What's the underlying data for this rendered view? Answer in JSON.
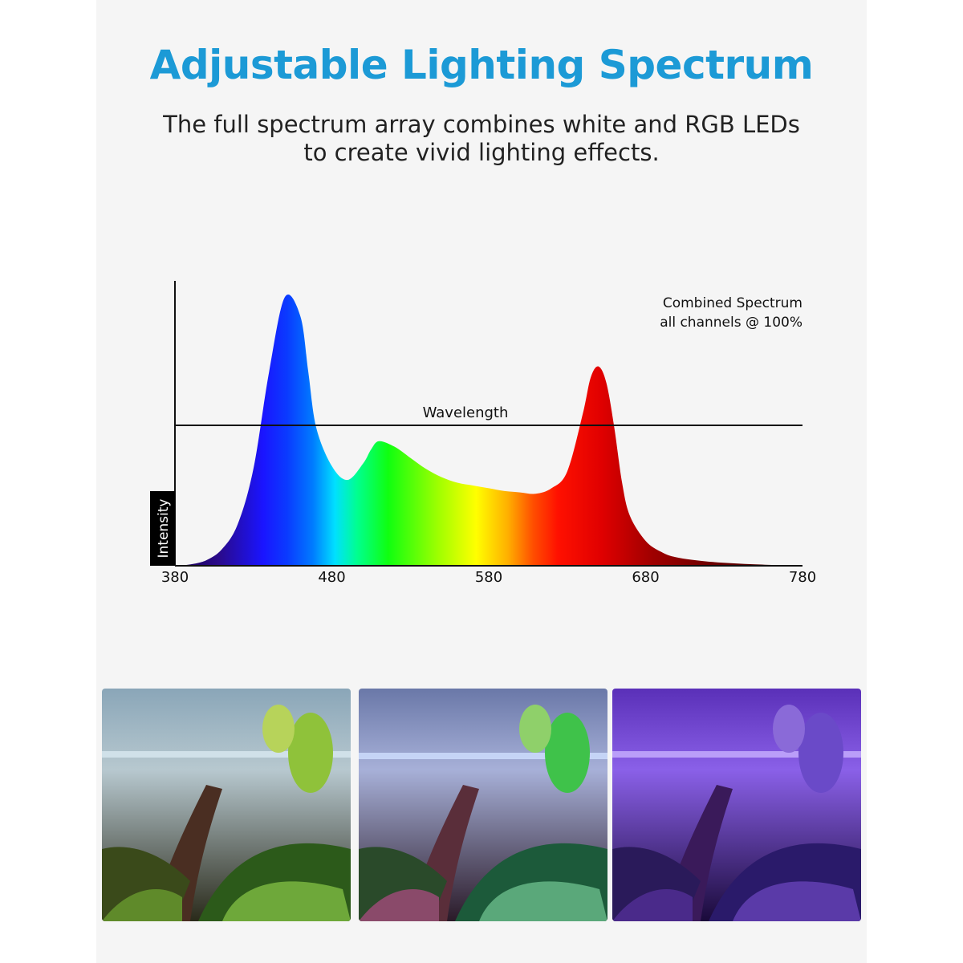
{
  "header": {
    "title": "Adjustable Lighting Spectrum",
    "subtitle_line1": "The full spectrum array combines white and RGB LEDs",
    "subtitle_line2": "to create vivid lighting effects."
  },
  "colors": {
    "title": "#1c9ad6",
    "text": "#222222",
    "panel": "#f5f5f5"
  },
  "chart_data": {
    "type": "area",
    "xlabel": "Wavelength",
    "ylabel": "Intensity",
    "xlim": [
      380,
      780
    ],
    "ylim": [
      0,
      1
    ],
    "x_ticks": [
      "380",
      "480",
      "580",
      "680",
      "780"
    ],
    "legend": [
      "Combined Spectrum",
      "all channels @ 100%"
    ],
    "legend_position": "top-right",
    "fill": "visible-spectrum gradient",
    "series": [
      {
        "x": [
          380,
          390,
          400,
          410,
          420,
          430,
          440,
          450,
          460,
          465,
          470,
          480,
          490,
          500,
          505,
          510,
          520,
          530,
          540,
          550,
          560,
          570,
          580,
          590,
          600,
          610,
          620,
          630,
          640,
          645,
          650,
          655,
          660,
          665,
          670,
          680,
          690,
          700,
          720,
          750,
          780
        ],
        "y": [
          0.0,
          0.005,
          0.02,
          0.06,
          0.15,
          0.35,
          0.7,
          0.97,
          0.9,
          0.7,
          0.5,
          0.36,
          0.31,
          0.37,
          0.42,
          0.45,
          0.43,
          0.39,
          0.35,
          0.32,
          0.3,
          0.29,
          0.28,
          0.27,
          0.265,
          0.26,
          0.28,
          0.34,
          0.55,
          0.68,
          0.72,
          0.66,
          0.5,
          0.3,
          0.18,
          0.09,
          0.05,
          0.03,
          0.015,
          0.005,
          0.0
        ]
      }
    ]
  },
  "gallery": {
    "photos": [
      {
        "label": "white light aquarium",
        "tint": "#9fd06a"
      },
      {
        "label": "blended light aquarium",
        "tint": "#7fa0e0"
      },
      {
        "label": "purple light aquarium",
        "tint": "#7a40e0"
      }
    ]
  }
}
